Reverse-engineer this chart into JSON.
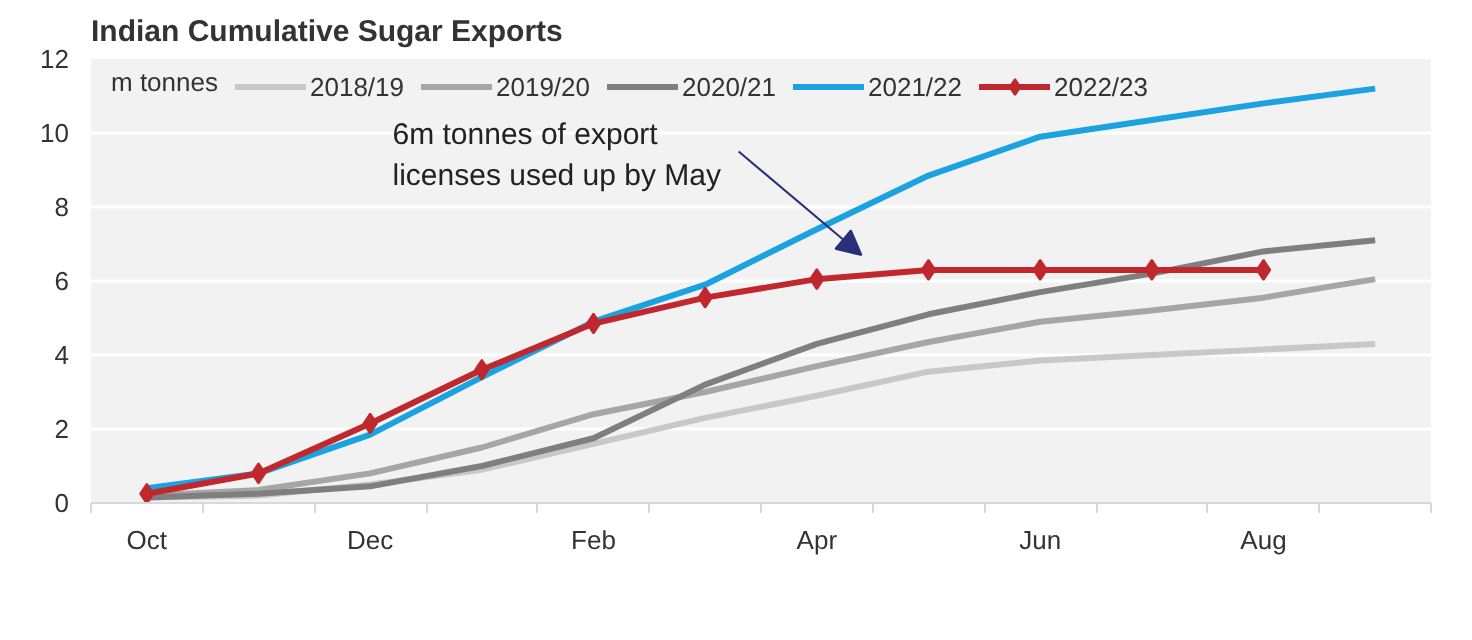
{
  "chart_data": {
    "type": "line",
    "title": "Indian Cumulative Sugar Exports",
    "ylabel": "m tonnes",
    "categories": [
      "Oct",
      null,
      "Dec",
      null,
      "Feb",
      null,
      "Apr",
      null,
      "Jun",
      null,
      "Aug",
      null
    ],
    "series": [
      {
        "name": "2018/19",
        "color": "#c8c8c8",
        "values": [
          0.15,
          0.2,
          0.5,
          0.9,
          1.6,
          2.3,
          2.9,
          3.55,
          3.85,
          4.0,
          4.15,
          4.3
        ]
      },
      {
        "name": "2019/20",
        "color": "#a6a6a6",
        "values": [
          0.2,
          0.35,
          0.8,
          1.5,
          2.4,
          3.0,
          3.7,
          4.35,
          4.9,
          5.2,
          5.55,
          6.05
        ]
      },
      {
        "name": "2020/21",
        "color": "#7f7f7f",
        "values": [
          0.15,
          0.25,
          0.45,
          1.0,
          1.75,
          3.2,
          4.3,
          5.1,
          5.7,
          6.2,
          6.8,
          7.1
        ]
      },
      {
        "name": "2021/22",
        "color": "#1aa3e0",
        "values": [
          0.4,
          0.8,
          1.85,
          3.4,
          4.9,
          5.9,
          7.4,
          8.85,
          9.9,
          10.35,
          10.8,
          11.2
        ]
      },
      {
        "name": "2022/23",
        "color": "#c0282d",
        "marker": "diamond",
        "values": [
          0.25,
          0.8,
          2.15,
          3.6,
          4.85,
          5.55,
          6.05,
          6.3,
          6.3,
          6.3,
          6.3,
          null
        ]
      }
    ],
    "ylim": [
      0,
      12
    ],
    "yticks": [
      0,
      2,
      4,
      6,
      8,
      10,
      12
    ],
    "grid": "y",
    "legend": "top",
    "annotations": [
      "6m tonnes of export licenses used up by May"
    ]
  }
}
